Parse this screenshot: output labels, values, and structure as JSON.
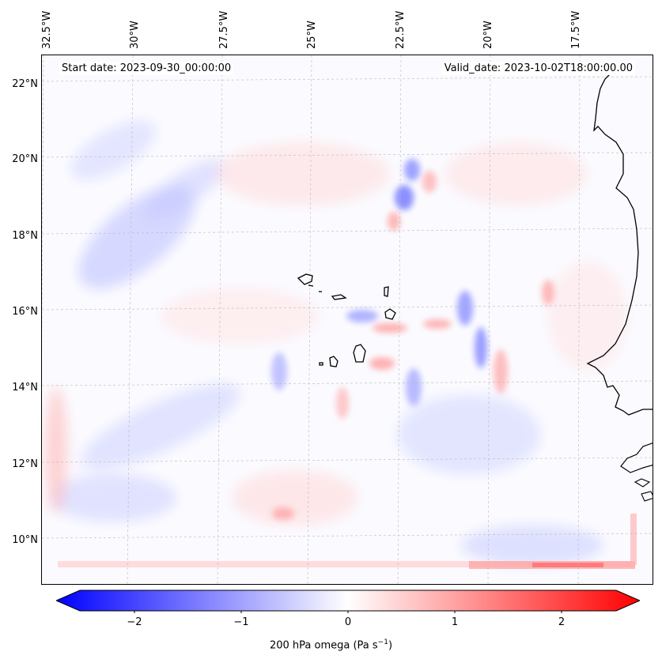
{
  "map": {
    "longitude_labels": [
      "32.5°W",
      "30°W",
      "27.5°W",
      "25°W",
      "22.5°W",
      "20°W",
      "17.5°W"
    ],
    "latitude_labels": [
      "22°N",
      "20°N",
      "18°N",
      "16°N",
      "14°N",
      "12°N",
      "10°N"
    ],
    "start_date": "Start date: 2023-09-30_00:00:00",
    "valid_date": "Valid_date: 2023-10-02T18:00:00.00",
    "field": "200 hPa omega",
    "colormap": "bwr",
    "colors": {
      "negative": "#0000ff",
      "zero": "#ffffff",
      "positive": "#ff0000",
      "coast": "#000000"
    }
  },
  "colorbar": {
    "ticks": [
      "−2",
      "−1",
      "0",
      "1",
      "2"
    ],
    "range": [
      -2.75,
      2.75
    ],
    "extend": "both",
    "label_text": "200 hPa omega (Pa s",
    "label_exponent": "−1",
    "label_close": ")"
  }
}
